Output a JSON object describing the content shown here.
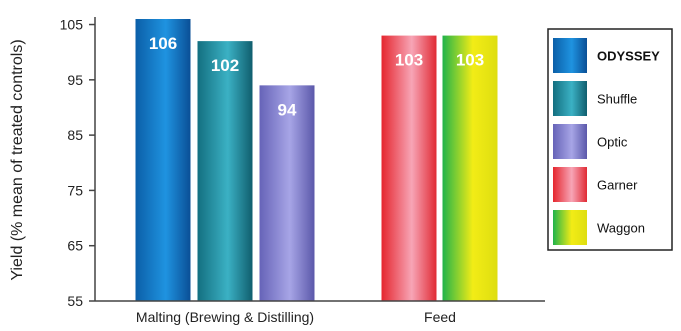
{
  "chart_data": {
    "type": "bar",
    "categories": [
      "Malting (Brewing & Distilling)",
      "Feed"
    ],
    "ylabel": "Yield (% mean of treated controls)",
    "ylim": [
      55,
      106
    ],
    "yticks": [
      "105",
      "95",
      "85",
      "75",
      "65",
      "55"
    ],
    "grid": false,
    "legend_position": "right",
    "series": [
      {
        "name": "ODYSSEY",
        "category": "Malting (Brewing & Distilling)",
        "value": 106,
        "label": "106",
        "colors": [
          "#0b5fa8",
          "#1f93e0",
          "#0a4f96"
        ]
      },
      {
        "name": "Shuffle",
        "category": "Malting (Brewing & Distilling)",
        "value": 102,
        "label": "102",
        "colors": [
          "#136f80",
          "#3bb1c4",
          "#105e6e"
        ]
      },
      {
        "name": "Optic",
        "category": "Malting (Brewing & Distilling)",
        "value": 94,
        "label": "94",
        "colors": [
          "#6663b8",
          "#a7a5e6",
          "#5b58aa"
        ]
      },
      {
        "name": "Garner",
        "category": "Feed",
        "value": 103,
        "label": "103",
        "colors": [
          "#e5262e",
          "#f7a5b6",
          "#e02a34"
        ]
      },
      {
        "name": "Waggon",
        "category": "Feed",
        "value": 103,
        "label": "103",
        "colors": [
          "#20b34a",
          "#f2ec16",
          "#dede10"
        ]
      }
    ]
  }
}
